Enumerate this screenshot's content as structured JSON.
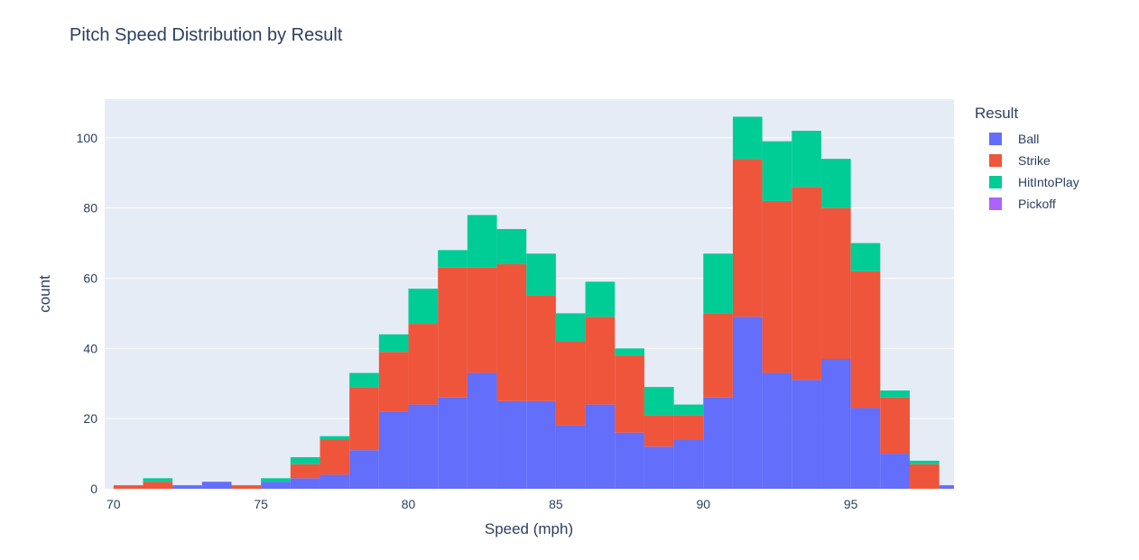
{
  "chart_data": {
    "type": "bar",
    "mode": "stacked histogram",
    "title": "Pitch Speed Distribution by Result",
    "xlabel": "Speed (mph)",
    "ylabel": "count",
    "xlim": [
      69.7,
      98.5
    ],
    "ylim": [
      0,
      111
    ],
    "xticks": [
      70,
      75,
      80,
      85,
      90,
      95
    ],
    "yticks": [
      0,
      20,
      40,
      60,
      80,
      100
    ],
    "bin_width": 1,
    "x": [
      70.5,
      71.5,
      72.5,
      73.5,
      74.5,
      75.5,
      76.5,
      77.5,
      78.5,
      79.5,
      80.5,
      81.5,
      82.5,
      83.5,
      84.5,
      85.5,
      86.5,
      87.5,
      88.5,
      89.5,
      90.5,
      91.5,
      92.5,
      93.5,
      94.5,
      95.5,
      96.5,
      97.5,
      98.5
    ],
    "legend_title": "Result",
    "legend_position": "right",
    "grid": true,
    "series": [
      {
        "name": "Ball",
        "color": "#636efa",
        "values": [
          0,
          0,
          1,
          2,
          0,
          2,
          3,
          4,
          11,
          22,
          24,
          26,
          33,
          25,
          25,
          18,
          24,
          16,
          12,
          14,
          26,
          49,
          33,
          31,
          37,
          23,
          10,
          0,
          1
        ]
      },
      {
        "name": "Strike",
        "color": "#ef553b",
        "values": [
          1,
          2,
          0,
          0,
          1,
          0,
          4,
          10,
          18,
          17,
          23,
          37,
          30,
          39,
          30,
          24,
          25,
          22,
          9,
          7,
          24,
          45,
          49,
          55,
          43,
          39,
          16,
          7,
          0
        ]
      },
      {
        "name": "HitIntoPlay",
        "color": "#00cc96",
        "values": [
          0,
          1,
          0,
          0,
          0,
          1,
          2,
          1,
          4,
          5,
          10,
          5,
          15,
          10,
          12,
          8,
          10,
          2,
          8,
          3,
          17,
          12,
          17,
          16,
          14,
          8,
          2,
          1,
          0
        ]
      },
      {
        "name": "Pickoff",
        "color": "#ab63fa",
        "values": [
          0,
          0,
          0,
          0,
          0,
          0,
          0,
          0,
          0,
          0,
          0,
          0,
          0,
          0,
          0,
          0,
          0,
          0,
          0,
          0,
          0,
          0,
          0,
          0,
          0,
          0,
          0,
          0,
          0
        ]
      }
    ]
  },
  "colors": {
    "plot_background": "#e5ecf6",
    "gridline": "#ffffff",
    "text": "#2a3f5f"
  }
}
